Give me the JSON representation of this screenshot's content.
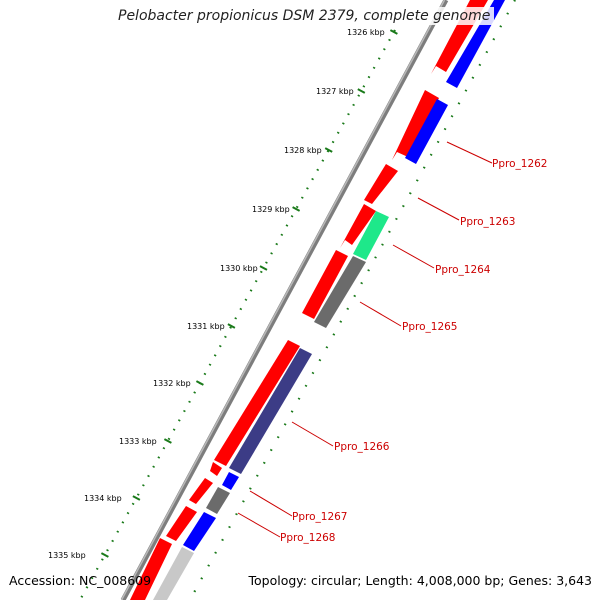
{
  "title": "Pelobacter propionicus DSM 2379, complete genome",
  "footer": {
    "accession_label": "Accession:",
    "accession_value": "NC_008609",
    "topology_label": "Topology:",
    "topology_value": "circular;",
    "length_label": "Length:",
    "length_value": "4,008,000 bp;",
    "genes_label": "Genes:",
    "genes_value": "3,643"
  },
  "ruler_ticks": [
    "1326 kbp",
    "1327 kbp",
    "1328 kbp",
    "1329 kbp",
    "1330 kbp",
    "1331 kbp",
    "1332 kbp",
    "1333 kbp",
    "1334 kbp",
    "1335 kbp"
  ],
  "gene_labels": [
    "Ppro_1262",
    "Ppro_1263",
    "Ppro_1264",
    "Ppro_1265",
    "Ppro_1266",
    "Ppro_1267",
    "Ppro_1268"
  ],
  "colors": {
    "backbone": "#8a8a8a",
    "forward_feature": "#ff0000",
    "cds_blue": "#0000ff",
    "cds_green": "#1ee88a",
    "cds_gray": "#6b6b6b",
    "cds_slate": "#3c3c86",
    "cds_light_gray": "#c8c8c8",
    "tick_green": "#1a7a1a",
    "label_red": "#cc0000"
  }
}
